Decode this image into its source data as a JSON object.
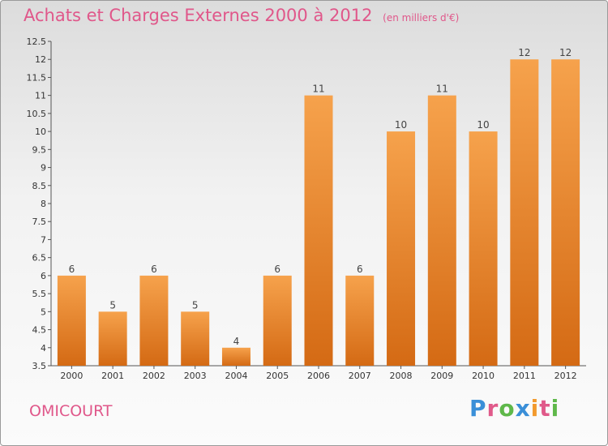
{
  "header": {
    "title": "Achats et Charges Externes 2000 à 2012",
    "subtitle": "(en milliers d'€)"
  },
  "commune": "OMICOURT",
  "logo": "Proxiti",
  "colors": {
    "bar_top": "#f6a24c",
    "bar_bottom": "#d46a14",
    "title": "#e0578a"
  },
  "chart_data": {
    "type": "bar",
    "title": "Achats et Charges Externes 2000 à 2012",
    "subtitle": "(en milliers d'€)",
    "categories": [
      "2000",
      "2001",
      "2002",
      "2003",
      "2004",
      "2005",
      "2006",
      "2007",
      "2008",
      "2009",
      "2010",
      "2011",
      "2012"
    ],
    "values": [
      6,
      5,
      6,
      5,
      4,
      6,
      11,
      6,
      10,
      11,
      10,
      12,
      12
    ],
    "ylim": [
      3.5,
      12.5
    ],
    "yticks": [
      "3.5",
      "4",
      "4.5",
      "5",
      "5.5",
      "6",
      "6.5",
      "7",
      "7.5",
      "8",
      "8.5",
      "9",
      "9.5",
      "10",
      "10.5",
      "11",
      "11.5",
      "12",
      "12.5"
    ],
    "grid": false,
    "legend": "none"
  }
}
